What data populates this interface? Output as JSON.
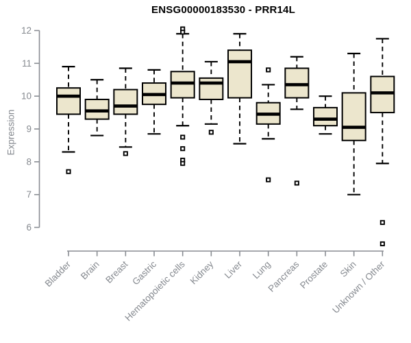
{
  "chart_data": {
    "type": "boxplot",
    "title": "ENSG00000183530 - PRR14L",
    "ylabel": "Expression",
    "xlabel": "",
    "ylim": [
      5.3,
      12.1
    ],
    "yticks": [
      6,
      7,
      8,
      9,
      10,
      11,
      12
    ],
    "grid": false,
    "legend_position": "none",
    "categories": [
      "Bladder",
      "Brain",
      "Breast",
      "Gastric",
      "Hematopoietic cells",
      "Kidney",
      "Liver",
      "Lung",
      "Pancreas",
      "Prostate",
      "Skin",
      "Unknown / Other"
    ],
    "series": [
      {
        "name": "Bladder",
        "whisker_low": 8.3,
        "q1": 9.45,
        "median": 10.0,
        "q3": 10.25,
        "whisker_high": 10.9,
        "outliers": [
          7.7
        ]
      },
      {
        "name": "Brain",
        "whisker_low": 8.8,
        "q1": 9.3,
        "median": 9.55,
        "q3": 9.9,
        "whisker_high": 10.5,
        "outliers": []
      },
      {
        "name": "Breast",
        "whisker_low": 8.45,
        "q1": 9.45,
        "median": 9.7,
        "q3": 10.2,
        "whisker_high": 10.85,
        "outliers": [
          8.25
        ]
      },
      {
        "name": "Gastric",
        "whisker_low": 8.85,
        "q1": 9.75,
        "median": 10.05,
        "q3": 10.4,
        "whisker_high": 10.8,
        "outliers": []
      },
      {
        "name": "Hematopoietic cells",
        "whisker_low": 9.1,
        "q1": 9.95,
        "median": 10.4,
        "q3": 10.75,
        "whisker_high": 11.9,
        "outliers": [
          12.05,
          11.95,
          8.75,
          8.4,
          8.05,
          7.95
        ]
      },
      {
        "name": "Kidney",
        "whisker_low": 9.15,
        "q1": 9.9,
        "median": 10.4,
        "q3": 10.55,
        "whisker_high": 11.05,
        "outliers": [
          8.9
        ]
      },
      {
        "name": "Liver",
        "whisker_low": 8.55,
        "q1": 9.95,
        "median": 11.05,
        "q3": 11.4,
        "whisker_high": 11.9,
        "outliers": []
      },
      {
        "name": "Lung",
        "whisker_low": 8.7,
        "q1": 9.15,
        "median": 9.45,
        "q3": 9.8,
        "whisker_high": 10.35,
        "outliers": [
          10.8,
          7.45
        ]
      },
      {
        "name": "Pancreas",
        "whisker_low": 9.6,
        "q1": 9.95,
        "median": 10.35,
        "q3": 10.85,
        "whisker_high": 11.2,
        "outliers": [
          7.35
        ]
      },
      {
        "name": "Prostate",
        "whisker_low": 8.85,
        "q1": 9.1,
        "median": 9.3,
        "q3": 9.65,
        "whisker_high": 10.0,
        "outliers": []
      },
      {
        "name": "Skin",
        "whisker_low": 7.0,
        "q1": 8.65,
        "median": 9.05,
        "q3": 10.1,
        "whisker_high": 11.3,
        "outliers": []
      },
      {
        "name": "Unknown / Other",
        "whisker_low": 7.95,
        "q1": 9.5,
        "median": 10.1,
        "q3": 10.6,
        "whisker_high": 11.75,
        "outliers": [
          6.15,
          5.5
        ]
      }
    ],
    "colors": {
      "box_fill": "#ECE6CD",
      "box_border": "#000000",
      "median": "#000000",
      "whisker": "#000000",
      "outlier": "#000000",
      "axis": "#888c92",
      "tick_label": "#85898f",
      "title": "#000000",
      "background": "#ffffff"
    }
  }
}
